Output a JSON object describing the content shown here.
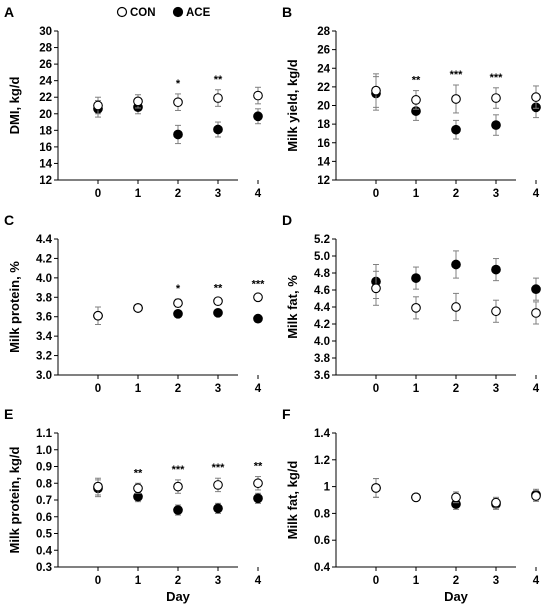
{
  "x_axis_label": "Day",
  "legend": {
    "items": [
      {
        "label": "CON",
        "marker": "open"
      },
      {
        "label": "ACE",
        "marker": "filled"
      }
    ]
  },
  "colors": {
    "axis": "#000000",
    "error_bar": "#808080",
    "con_fill": "#ffffff",
    "ace_fill": "#000000"
  },
  "chart_data": [
    {
      "panel": "A",
      "type": "scatter",
      "ylabel": "DMI, kg/d",
      "x": [
        0,
        1,
        2,
        3,
        4
      ],
      "ylim": [
        12,
        30
      ],
      "yticks": [
        12,
        14,
        16,
        18,
        20,
        22,
        24,
        26,
        28,
        30
      ],
      "yticklabels": [
        "12",
        "14",
        "16",
        "18",
        "20",
        "22",
        "24",
        "26",
        "28",
        "30"
      ],
      "series": [
        {
          "name": "CON",
          "values": [
            21.0,
            21.5,
            21.4,
            21.9,
            22.2
          ],
          "err": [
            1.0,
            0.8,
            1.0,
            1.0,
            1.0
          ]
        },
        {
          "name": "ACE",
          "values": [
            20.6,
            20.8,
            17.5,
            18.1,
            19.7
          ],
          "err": [
            1.0,
            0.8,
            1.1,
            0.9,
            0.9
          ]
        }
      ],
      "annotations": [
        {
          "x": 2,
          "text": "*"
        },
        {
          "x": 3,
          "text": "**"
        }
      ]
    },
    {
      "panel": "B",
      "type": "scatter",
      "ylabel": "Milk yield, kg/d",
      "x": [
        0,
        1,
        2,
        3,
        4
      ],
      "ylim": [
        12,
        28
      ],
      "yticks": [
        12,
        14,
        16,
        18,
        20,
        22,
        24,
        26,
        28
      ],
      "yticklabels": [
        "12",
        "14",
        "16",
        "18",
        "20",
        "22",
        "24",
        "26",
        "28"
      ],
      "series": [
        {
          "name": "CON",
          "values": [
            21.6,
            20.6,
            20.7,
            20.8,
            20.9
          ],
          "err": [
            1.8,
            1.0,
            1.5,
            1.1,
            1.2
          ]
        },
        {
          "name": "ACE",
          "values": [
            21.3,
            19.4,
            17.4,
            17.9,
            19.8
          ],
          "err": [
            1.8,
            1.0,
            1.0,
            1.1,
            1.1
          ]
        }
      ],
      "annotations": [
        {
          "x": 1,
          "text": "**"
        },
        {
          "x": 2,
          "text": "***"
        },
        {
          "x": 3,
          "text": "***"
        }
      ]
    },
    {
      "panel": "C",
      "type": "scatter",
      "ylabel": "Milk protein, %",
      "x": [
        0,
        1,
        2,
        3,
        4
      ],
      "ylim": [
        3.0,
        4.4
      ],
      "yticks": [
        3.0,
        3.2,
        3.4,
        3.6,
        3.8,
        4.0,
        4.2,
        4.4
      ],
      "yticklabels": [
        "3.0",
        "3.2",
        "3.4",
        "3.6",
        "3.8",
        "4.0",
        "4.2",
        "4.4"
      ],
      "series": [
        {
          "name": "CON",
          "values": [
            3.61,
            3.69,
            3.74,
            3.76,
            3.8
          ],
          "err": [
            0.09,
            0.03,
            0.04,
            0.03,
            0.03
          ]
        },
        {
          "name": "ACE",
          "values": [
            3.61,
            3.69,
            3.63,
            3.64,
            3.58
          ],
          "err": [
            0.09,
            0.03,
            0.03,
            0.03,
            0.03
          ]
        }
      ],
      "annotations": [
        {
          "x": 2,
          "text": "*"
        },
        {
          "x": 3,
          "text": "**"
        },
        {
          "x": 4,
          "text": "***"
        }
      ]
    },
    {
      "panel": "D",
      "type": "scatter",
      "ylabel": "Milk fat, %",
      "x": [
        0,
        1,
        2,
        3,
        4
      ],
      "ylim": [
        3.6,
        5.2
      ],
      "yticks": [
        3.6,
        3.8,
        4.0,
        4.2,
        4.4,
        4.6,
        4.8,
        5.0,
        5.2
      ],
      "yticklabels": [
        "3.6",
        "3.8",
        "4.0",
        "4.2",
        "4.4",
        "4.6",
        "4.8",
        "5.0",
        "5.2"
      ],
      "series": [
        {
          "name": "CON",
          "values": [
            4.62,
            4.39,
            4.4,
            4.35,
            4.33
          ],
          "err": [
            0.2,
            0.13,
            0.16,
            0.13,
            0.13
          ]
        },
        {
          "name": "ACE",
          "values": [
            4.7,
            4.74,
            4.9,
            4.84,
            4.61
          ],
          "err": [
            0.2,
            0.13,
            0.16,
            0.13,
            0.13
          ]
        }
      ],
      "annotations": []
    },
    {
      "panel": "E",
      "type": "scatter",
      "ylabel": "Milk protein, kg/d",
      "x": [
        0,
        1,
        2,
        3,
        4
      ],
      "ylim": [
        0.3,
        1.1
      ],
      "yticks": [
        0.3,
        0.4,
        0.5,
        0.6,
        0.7,
        0.8,
        0.9,
        1.0,
        1.1
      ],
      "yticklabels": [
        "0.3",
        "0.4",
        "0.5",
        "0.6",
        "0.7",
        "0.8",
        "0.9",
        "1.0",
        "1.1"
      ],
      "series": [
        {
          "name": "CON",
          "values": [
            0.78,
            0.77,
            0.78,
            0.79,
            0.8
          ],
          "err": [
            0.05,
            0.03,
            0.04,
            0.04,
            0.04
          ]
        },
        {
          "name": "ACE",
          "values": [
            0.77,
            0.72,
            0.64,
            0.65,
            0.71
          ],
          "err": [
            0.05,
            0.03,
            0.03,
            0.03,
            0.03
          ]
        }
      ],
      "annotations": [
        {
          "x": 1,
          "text": "**"
        },
        {
          "x": 2,
          "text": "***"
        },
        {
          "x": 3,
          "text": "***"
        },
        {
          "x": 4,
          "text": "**"
        }
      ]
    },
    {
      "panel": "F",
      "type": "scatter",
      "ylabel": "Milk fat, kg/d",
      "x": [
        0,
        1,
        2,
        3,
        4
      ],
      "ylim": [
        0.4,
        1.4
      ],
      "yticks": [
        0.4,
        0.6,
        0.8,
        1.0,
        1.2,
        1.4
      ],
      "yticklabels": [
        "0.4",
        "0.6",
        "0.8",
        "1",
        "1.2",
        "1.4"
      ],
      "series": [
        {
          "name": "CON",
          "values": [
            0.99,
            0.92,
            0.92,
            0.88,
            0.93
          ],
          "err": [
            0.07,
            0.02,
            0.04,
            0.04,
            0.04
          ]
        },
        {
          "name": "ACE",
          "values": [
            0.99,
            0.92,
            0.87,
            0.87,
            0.94
          ],
          "err": [
            0.07,
            0.02,
            0.04,
            0.04,
            0.04
          ]
        }
      ],
      "annotations": []
    }
  ]
}
